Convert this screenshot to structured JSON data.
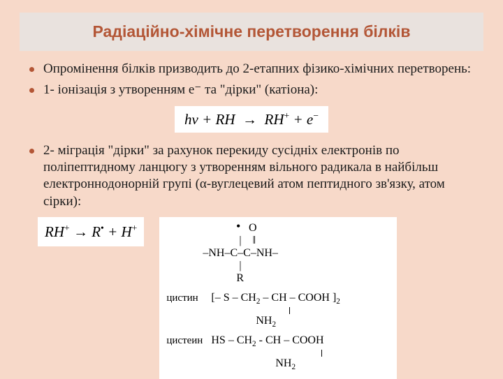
{
  "title": "Радіаційно-хімічне перетворення білків",
  "bullets": {
    "b1": "Опромінення білків призводить до 2-етапних фізико-хімічних перетворень:",
    "b2": "1- іонізація з утворенням е⁻ та \"дірки\" (катіона):",
    "b3": "2- міграція \"дірки\" за рахунок перекиду сусідніх електронів по поліпептидному ланцюгу з утворенням вільного радикала в найбільш електроннодонорній групі (α-вуглецевий атом пептидного зв'язку, атом сірки):"
  },
  "equations": {
    "eq1_html": "<i>hν</i> + <i>RH</i> &nbsp;→&nbsp; <i>RH</i><sup>+</sup> + <i>e</i><sup>−</sup>",
    "eq2_html": "<i>RH</i><sup>+</sup> → <i>R</i><sup>•</sup> + <i>H</i><sup>+</sup>"
  },
  "chem": {
    "peptide_line1": "&nbsp;&nbsp;&nbsp;&nbsp;&nbsp;&nbsp;&nbsp;&nbsp;&nbsp;&nbsp;&nbsp;&nbsp;&nbsp;&nbsp;&nbsp;&nbsp;&nbsp;&nbsp;&nbsp;&nbsp;&nbsp;&nbsp;&nbsp;&nbsp;&nbsp;<span class=\"dot\">•</span>&nbsp;&nbsp;&nbsp;O",
    "peptide_line2": "&nbsp;&nbsp;&nbsp;&nbsp;&nbsp;&nbsp;&nbsp;&nbsp;&nbsp;&nbsp;&nbsp;&nbsp;&nbsp;&nbsp;&nbsp;&nbsp;&nbsp;&nbsp;&nbsp;&nbsp;&nbsp;&nbsp;&nbsp;&nbsp;&nbsp;&nbsp;|&nbsp;&nbsp;&nbsp;&nbsp;‖",
    "peptide_line3": "&nbsp;&nbsp;&nbsp;&nbsp;&nbsp;&nbsp;&nbsp;&nbsp;&nbsp;&nbsp;&nbsp;&nbsp;&nbsp;–NH–C–C–NH–",
    "peptide_line4": "&nbsp;&nbsp;&nbsp;&nbsp;&nbsp;&nbsp;&nbsp;&nbsp;&nbsp;&nbsp;&nbsp;&nbsp;&nbsp;&nbsp;&nbsp;&nbsp;&nbsp;&nbsp;&nbsp;&nbsp;&nbsp;&nbsp;&nbsp;&nbsp;&nbsp;&nbsp;|",
    "peptide_line5": "&nbsp;&nbsp;&nbsp;&nbsp;&nbsp;&nbsp;&nbsp;&nbsp;&nbsp;&nbsp;&nbsp;&nbsp;&nbsp;&nbsp;&nbsp;&nbsp;&nbsp;&nbsp;&nbsp;&nbsp;&nbsp;&nbsp;&nbsp;&nbsp;&nbsp;R",
    "cystine_label": "цистин",
    "cystine_formula": "[– S – CH<span class=\"sub\">2</span> – CH – COOH ]<span class=\"sub\">2</span>",
    "cystine_nh2": "&nbsp;&nbsp;&nbsp;&nbsp;&nbsp;&nbsp;&nbsp;&nbsp;&nbsp;&nbsp;&nbsp;&nbsp;&nbsp;&nbsp;&nbsp;&nbsp;&nbsp;&nbsp;&nbsp;&nbsp;&nbsp;&nbsp;&nbsp;&nbsp;&nbsp;&nbsp;&nbsp;&nbsp;&nbsp;&nbsp;&nbsp;&nbsp;NH<span class=\"sub\">2</span>",
    "cysteine_label": "цистеин",
    "cysteine_formula": "HS – CH<span class=\"sub\">2</span> - CH – COOH",
    "cysteine_nh2": "&nbsp;&nbsp;&nbsp;&nbsp;&nbsp;&nbsp;&nbsp;&nbsp;&nbsp;&nbsp;&nbsp;&nbsp;&nbsp;&nbsp;&nbsp;&nbsp;&nbsp;&nbsp;&nbsp;&nbsp;&nbsp;&nbsp;&nbsp;&nbsp;&nbsp;&nbsp;&nbsp;&nbsp;&nbsp;&nbsp;&nbsp;&nbsp;&nbsp;&nbsp;&nbsp;&nbsp;&nbsp;&nbsp;&nbsp;NH<span class=\"sub\">2</span>"
  },
  "colors": {
    "slide_bg": "#f7d9c9",
    "title_band_bg": "#e9e2de",
    "title_text": "#b35636",
    "bullet_dot": "#b35636",
    "body_text": "#1a1a1a",
    "equation_bg": "#ffffff"
  },
  "fonts": {
    "title_family": "Arial",
    "title_size_pt": 18,
    "body_family": "Times New Roman",
    "body_size_pt": 15,
    "equation_size_pt": 16
  }
}
